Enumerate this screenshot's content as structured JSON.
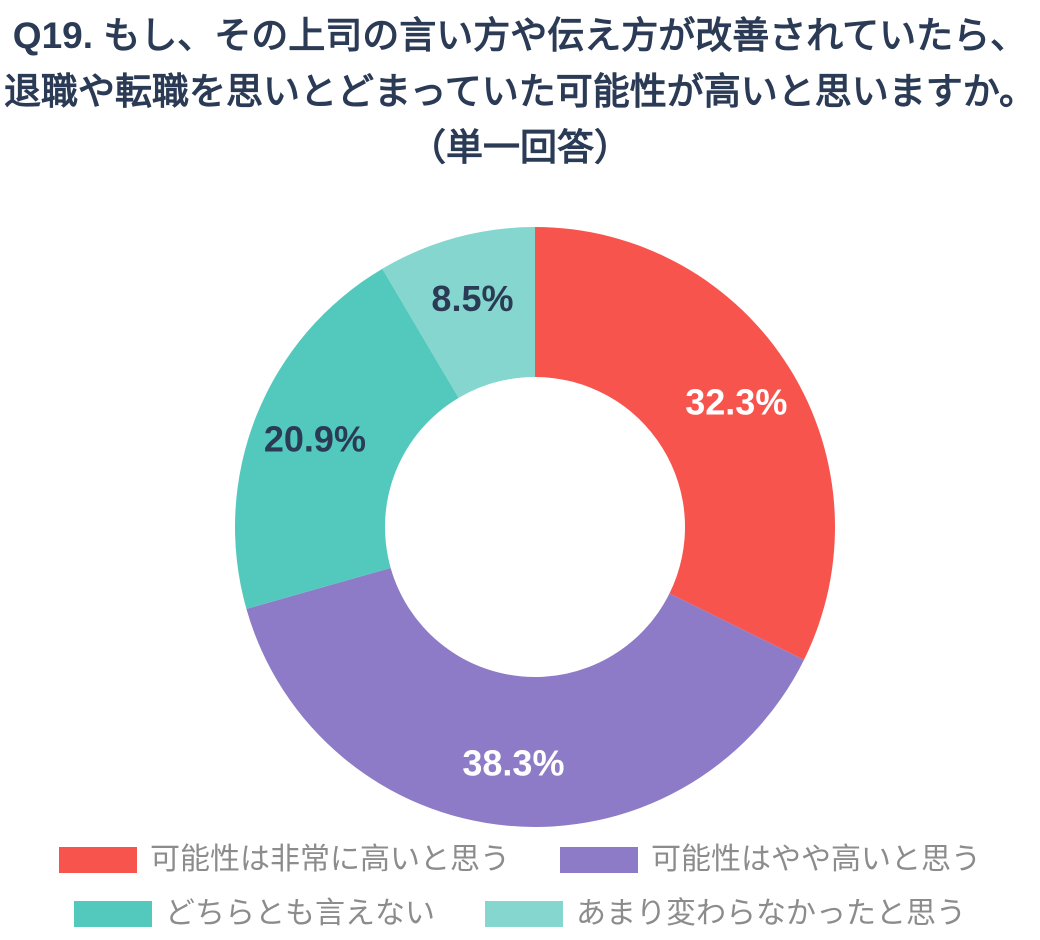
{
  "title": {
    "lines": [
      "Q19. もし、その上司の言い方や伝え方が改善されていたら、",
      "退職や転職を思いとどまっていた可能性が高いと思いますか。",
      "（単一回答）"
    ],
    "color": "#2b3b55"
  },
  "chart_data": {
    "type": "pie",
    "subtype": "donut",
    "title": "Q19. もし、その上司の言い方や伝え方が改善されていたら、退職や転職を思いとどまっていた可能性が高いと思いますか。（単一回答）",
    "unit": "%",
    "start_angle_deg": 0,
    "direction": "clockwise",
    "inner_radius_ratio": 0.5,
    "legend_position": "bottom",
    "segments": [
      {
        "label": "可能性は非常に高いと思う",
        "value": 32.3,
        "display": "32.3%",
        "color": "#f8544e",
        "label_color": "#ffffff"
      },
      {
        "label": "可能性はやや高いと思う",
        "value": 38.3,
        "display": "38.3%",
        "color": "#8e7bc7",
        "label_color": "#ffffff"
      },
      {
        "label": "どちらとも言えない",
        "value": 20.9,
        "display": "20.9%",
        "color": "#53c9be",
        "label_color": "#2b3b55"
      },
      {
        "label": "あまり変わらなかったと思う",
        "value": 8.5,
        "display": "8.5%",
        "color": "#84d6ce",
        "label_color": "#2b3b55"
      }
    ]
  }
}
